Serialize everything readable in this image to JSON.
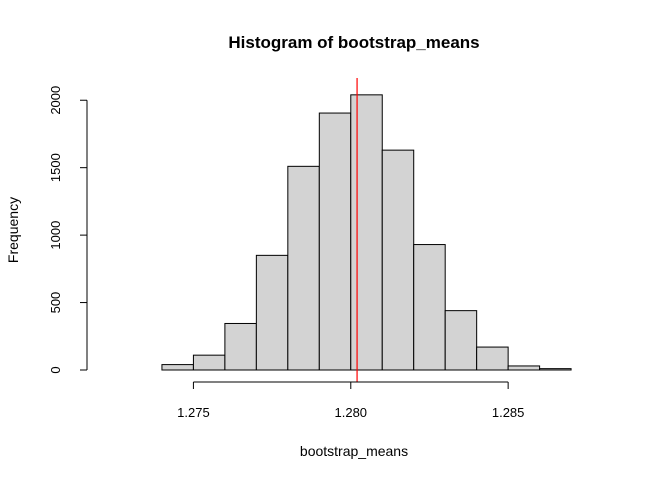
{
  "chart_data": {
    "type": "bar",
    "title": "Histogram of bootstrap_means",
    "xlabel": "bootstrap_means",
    "ylabel": "Frequency",
    "bin_edges": [
      1.274,
      1.275,
      1.276,
      1.277,
      1.278,
      1.279,
      1.28,
      1.281,
      1.282,
      1.283,
      1.284,
      1.285,
      1.286,
      1.287
    ],
    "values": [
      40,
      110,
      345,
      850,
      1510,
      1905,
      2040,
      1630,
      930,
      440,
      170,
      30,
      10
    ],
    "xlim": [
      1.272,
      1.2883
    ],
    "ylim": [
      0,
      2150
    ],
    "x_ticks": [
      1.275,
      1.28,
      1.285
    ],
    "x_tick_labels": [
      "1.275",
      "1.280",
      "1.285"
    ],
    "y_ticks": [
      0,
      500,
      1000,
      1500,
      2000
    ],
    "y_tick_labels": [
      "0",
      "500",
      "1000",
      "1500",
      "2000"
    ],
    "reference_line": {
      "x": 1.2802,
      "color": "#ff0000"
    },
    "grid": false,
    "bar_color": "#d3d3d3"
  }
}
